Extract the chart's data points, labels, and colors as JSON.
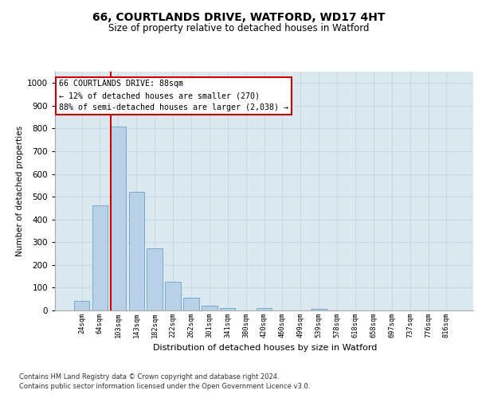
{
  "title_line1": "66, COURTLANDS DRIVE, WATFORD, WD17 4HT",
  "title_line2": "Size of property relative to detached houses in Watford",
  "xlabel": "Distribution of detached houses by size in Watford",
  "ylabel": "Number of detached properties",
  "footer_line1": "Contains HM Land Registry data © Crown copyright and database right 2024.",
  "footer_line2": "Contains public sector information licensed under the Open Government Licence v3.0.",
  "annotation_line1": "66 COURTLANDS DRIVE: 88sqm",
  "annotation_line2": "← 12% of detached houses are smaller (270)",
  "annotation_line3": "88% of semi-detached houses are larger (2,038) →",
  "bar_labels": [
    "24sqm",
    "64sqm",
    "103sqm",
    "143sqm",
    "182sqm",
    "222sqm",
    "262sqm",
    "301sqm",
    "341sqm",
    "380sqm",
    "420sqm",
    "460sqm",
    "499sqm",
    "539sqm",
    "578sqm",
    "618sqm",
    "658sqm",
    "697sqm",
    "737sqm",
    "776sqm",
    "816sqm"
  ],
  "bar_values": [
    42,
    462,
    810,
    520,
    272,
    125,
    57,
    20,
    12,
    0,
    12,
    0,
    0,
    8,
    0,
    0,
    0,
    0,
    0,
    0,
    0
  ],
  "bar_color": "#b8d0e8",
  "bar_edge_color": "#7aaac8",
  "property_line_x": 1.57,
  "annotation_box_color": "#ffffff",
  "annotation_box_edge_color": "#cc0000",
  "ylim": [
    0,
    1050
  ],
  "yticks": [
    0,
    100,
    200,
    300,
    400,
    500,
    600,
    700,
    800,
    900,
    1000
  ],
  "grid_color": "#c8d8e8",
  "background_color": "#ffffff",
  "plot_bg_color": "#dce8f0"
}
